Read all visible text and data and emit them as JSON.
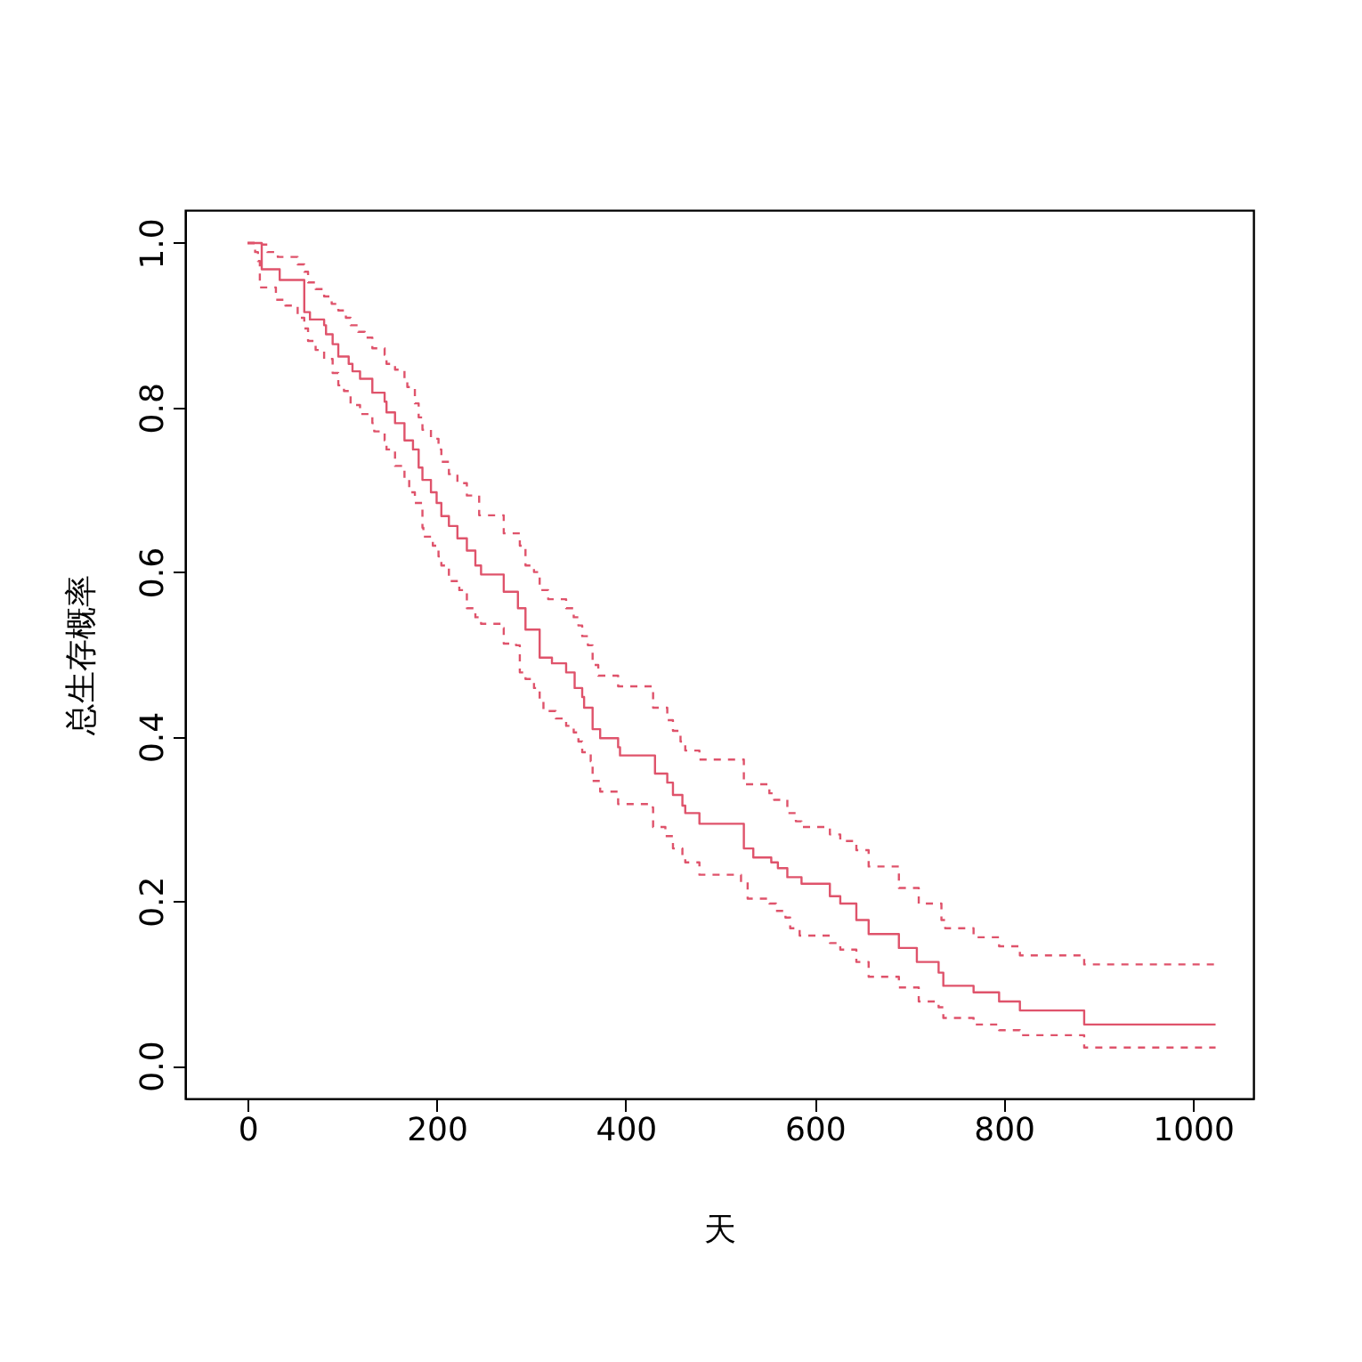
{
  "chart_data": {
    "type": "step",
    "xlabel": "天",
    "ylabel": "总生存概率",
    "xlim": [
      -66,
      1064
    ],
    "ylim": [
      -0.04,
      1.04
    ],
    "xticks": [
      0,
      200,
      400,
      600,
      800,
      {
        "value": 1000,
        "label": "1000"
      }
    ],
    "yticks": [
      {
        "value": 0,
        "label": "0.0"
      },
      0.2,
      0.4,
      0.6,
      0.8,
      {
        "value": 1,
        "label": "1.0"
      }
    ],
    "grid": false,
    "series": [
      {
        "color": "#df536b",
        "line_style": "solid",
        "x": [
          0,
          15,
          34,
          60,
          66,
          81,
          83,
          90,
          96,
          107,
          111,
          119,
          132,
          145,
          147,
          156,
          166,
          175,
          181,
          185,
          194,
          200,
          205,
          213,
          222,
          232,
          241,
          247,
          271,
          286,
          294,
          309,
          322,
          337,
          346,
          354,
          356,
          365,
          373,
          392,
          394,
          431,
          444,
          450,
          460,
          463,
          478,
          525,
          535,
          554,
          561,
          571,
          586,
          616,
          627,
          644,
          657,
          689,
          708,
          731,
          736,
          768,
          795,
          817,
          885,
          1024
        ],
        "values": [
          1.0,
          0.968,
          0.955,
          0.916,
          0.907,
          0.9,
          0.889,
          0.877,
          0.862,
          0.853,
          0.844,
          0.835,
          0.818,
          0.807,
          0.794,
          0.781,
          0.76,
          0.749,
          0.727,
          0.712,
          0.697,
          0.684,
          0.668,
          0.656,
          0.641,
          0.626,
          0.608,
          0.597,
          0.576,
          0.556,
          0.53,
          0.496,
          0.489,
          0.478,
          0.459,
          0.448,
          0.435,
          0.409,
          0.398,
          0.387,
          0.377,
          0.355,
          0.344,
          0.329,
          0.316,
          0.307,
          0.294,
          0.264,
          0.253,
          0.247,
          0.24,
          0.229,
          0.221,
          0.206,
          0.197,
          0.177,
          0.16,
          0.143,
          0.126,
          0.113,
          0.097,
          0.089,
          0.078,
          0.067,
          0.05,
          0.05
        ]
      },
      {
        "color": "#df536b",
        "line_style": "dashed",
        "x": [
          0,
          15,
          21,
          32,
          53,
          60,
          64,
          72,
          81,
          89,
          96,
          104,
          109,
          117,
          124,
          132,
          145,
          147,
          156,
          166,
          169,
          177,
          181,
          185,
          194,
          202,
          205,
          213,
          222,
          232,
          245,
          271,
          288,
          294,
          303,
          309,
          318,
          337,
          345,
          350,
          354,
          360,
          365,
          371,
          392,
          429,
          444,
          450,
          458,
          463,
          478,
          525,
          552,
          557,
          571,
          580,
          586,
          616,
          627,
          644,
          657,
          689,
          710,
          734,
          738,
          768,
          795,
          817,
          885,
          1024
        ],
        "values": [
          1.0,
          0.998,
          0.989,
          0.983,
          0.974,
          0.965,
          0.952,
          0.944,
          0.935,
          0.926,
          0.918,
          0.909,
          0.9,
          0.892,
          0.885,
          0.872,
          0.864,
          0.853,
          0.846,
          0.835,
          0.825,
          0.805,
          0.788,
          0.773,
          0.762,
          0.749,
          0.734,
          0.719,
          0.708,
          0.693,
          0.669,
          0.647,
          0.632,
          0.608,
          0.6,
          0.578,
          0.567,
          0.556,
          0.545,
          0.535,
          0.522,
          0.511,
          0.487,
          0.474,
          0.461,
          0.435,
          0.42,
          0.407,
          0.394,
          0.383,
          0.372,
          0.342,
          0.331,
          0.323,
          0.307,
          0.297,
          0.29,
          0.281,
          0.273,
          0.262,
          0.242,
          0.216,
          0.197,
          0.177,
          0.167,
          0.156,
          0.145,
          0.134,
          0.123,
          0.123
        ]
      },
      {
        "color": "#df536b",
        "line_style": "dashed",
        "x": [
          0,
          8,
          11,
          13,
          30,
          40,
          53,
          60,
          64,
          72,
          81,
          90,
          96,
          102,
          109,
          119,
          132,
          134,
          145,
          147,
          156,
          166,
          171,
          177,
          185,
          186,
          196,
          202,
          205,
          213,
          224,
          232,
          241,
          247,
          269,
          271,
          284,
          288,
          294,
          303,
          309,
          313,
          326,
          337,
          345,
          350,
          354,
          363,
          365,
          373,
          392,
          427,
          429,
          442,
          450,
          460,
          463,
          478,
          522,
          529,
          552,
          559,
          569,
          574,
          584,
          616,
          627,
          644,
          657,
          689,
          710,
          731,
          736,
          768,
          795,
          817,
          885,
          1024
        ],
        "values": [
          1.0,
          0.989,
          0.978,
          0.946,
          0.931,
          0.924,
          0.909,
          0.896,
          0.881,
          0.87,
          0.859,
          0.842,
          0.827,
          0.82,
          0.803,
          0.792,
          0.781,
          0.771,
          0.76,
          0.749,
          0.729,
          0.712,
          0.697,
          0.684,
          0.654,
          0.643,
          0.632,
          0.619,
          0.608,
          0.589,
          0.578,
          0.556,
          0.545,
          0.537,
          0.532,
          0.513,
          0.511,
          0.478,
          0.47,
          0.459,
          0.446,
          0.431,
          0.422,
          0.413,
          0.405,
          0.394,
          0.381,
          0.37,
          0.346,
          0.333,
          0.318,
          0.314,
          0.29,
          0.279,
          0.264,
          0.253,
          0.247,
          0.232,
          0.223,
          0.203,
          0.197,
          0.188,
          0.18,
          0.167,
          0.158,
          0.149,
          0.141,
          0.126,
          0.108,
          0.095,
          0.078,
          0.071,
          0.058,
          0.05,
          0.043,
          0.037,
          0.022,
          0.022
        ]
      }
    ]
  }
}
